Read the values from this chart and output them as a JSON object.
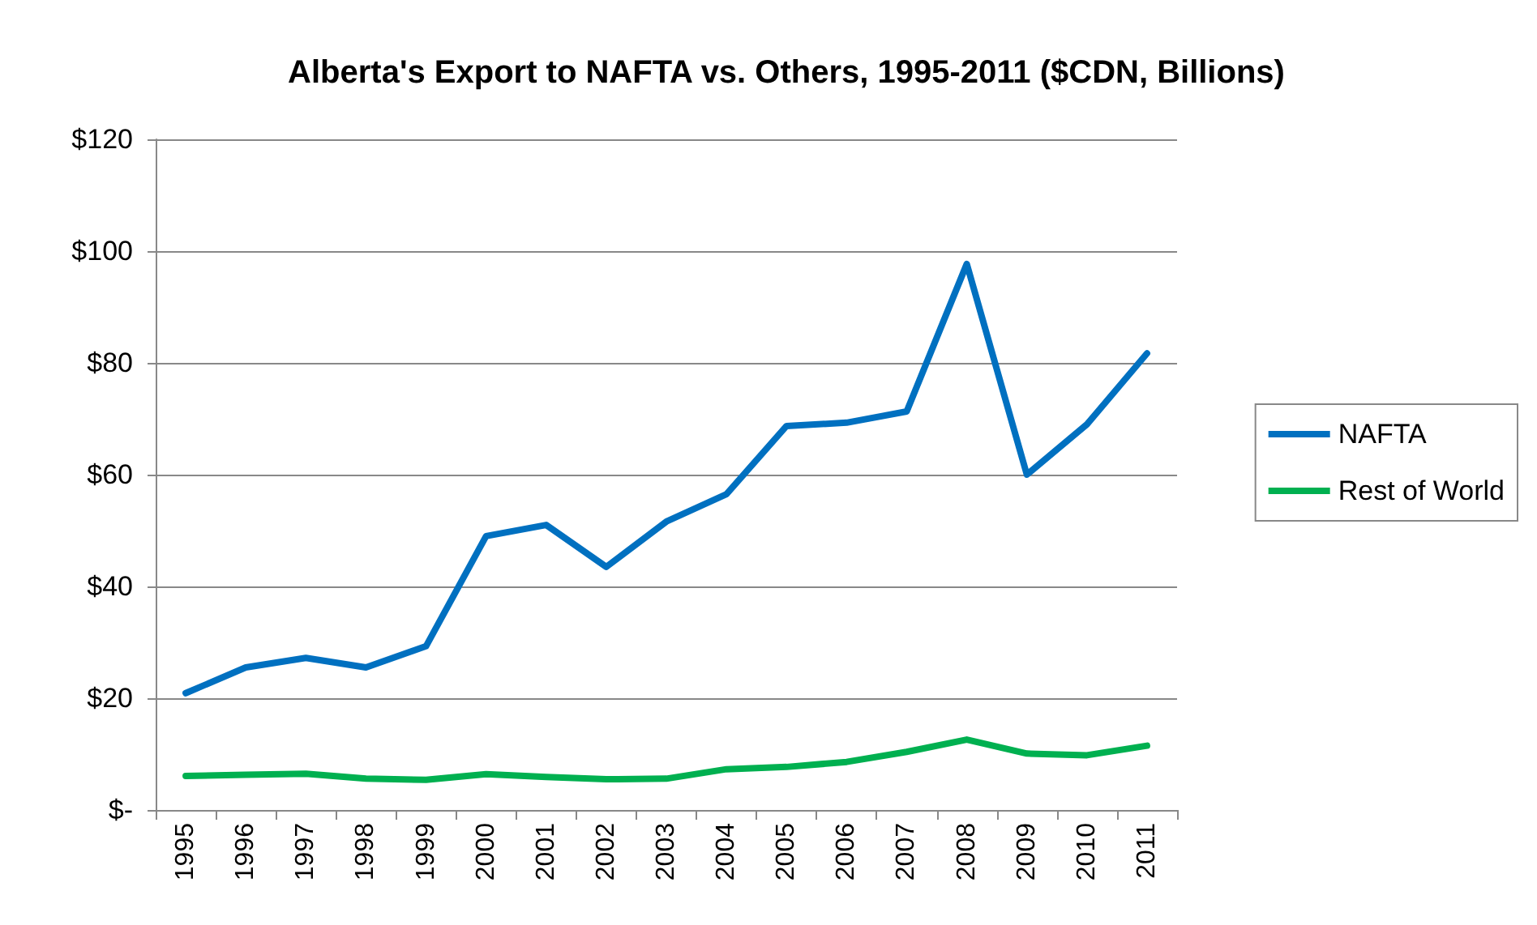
{
  "chart_data": {
    "type": "line",
    "title": "Alberta's Export to NAFTA vs. Others, 1995-2011 ($CDN, Billions)",
    "categories": [
      "1995",
      "1996",
      "1997",
      "1998",
      "1999",
      "2000",
      "2001",
      "2002",
      "2003",
      "2004",
      "2005",
      "2006",
      "2007",
      "2008",
      "2009",
      "2010",
      "2011"
    ],
    "series": [
      {
        "name": "NAFTA",
        "color": "#0070c0",
        "values": [
          20.9,
          25.5,
          27.2,
          25.5,
          29.3,
          49,
          51,
          43.5,
          51.6,
          56.5,
          68.7,
          69.3,
          71.3,
          97.7,
          60,
          69,
          81.7
        ]
      },
      {
        "name": "Rest of World",
        "color": "#00b050",
        "values": [
          6.1,
          6.3,
          6.5,
          5.6,
          5.4,
          6.4,
          5.9,
          5.5,
          5.6,
          7.3,
          7.7,
          8.6,
          10.4,
          12.6,
          10.1,
          9.8,
          11.5
        ]
      }
    ],
    "ylim": [
      0,
      120
    ],
    "yticks": [
      {
        "value": 0,
        "label": "$-"
      },
      {
        "value": 20,
        "label": "$20"
      },
      {
        "value": 40,
        "label": "$40"
      },
      {
        "value": 60,
        "label": "$60"
      },
      {
        "value": 80,
        "label": "$80"
      },
      {
        "value": 100,
        "label": "$100"
      },
      {
        "value": 120,
        "label": "$120"
      }
    ],
    "grid": "y",
    "legend": "right",
    "marker": "none",
    "line_style": "solid"
  }
}
